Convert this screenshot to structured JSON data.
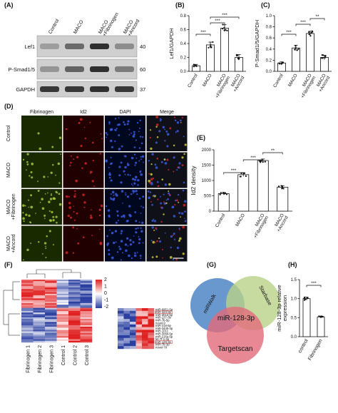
{
  "panels": {
    "A": {
      "label": "(A)",
      "lanes": [
        "Control",
        "MACO",
        "MACO\n+Fibrinogen",
        "MACO\n+Ancord"
      ],
      "bands": [
        {
          "name": "Lef1",
          "kda": "40"
        },
        {
          "name": "P-Smad1/5",
          "kda": "60"
        },
        {
          "name": "GAPDH",
          "kda": "37"
        }
      ]
    },
    "B": {
      "label": "(B)"
    },
    "C": {
      "label": "(C)"
    },
    "D": {
      "label": "(D)",
      "columns": [
        "Fibrinogen",
        "Id2",
        "DAPI",
        "Merge"
      ],
      "rows": [
        "Control",
        "MACO",
        "MACO\n+Fibrinogen",
        "MACO\n+Ancord"
      ]
    },
    "E": {
      "label": "(E)"
    },
    "F": {
      "label": "(F)",
      "colorbar_ticks": [
        "2",
        "1",
        "0",
        "-1",
        "-2"
      ],
      "columns": [
        "Fibrinogen 1",
        "Fibrinogen 2",
        "Fibrinogen 3",
        "Control 1",
        "Control 2",
        "Control 3"
      ],
      "mirnas": [
        "miR-6951-5p",
        "miR-324-3p",
        "miR-3010-5p",
        "miR-137-3b",
        "miR-7b-5p",
        "novel-9",
        "miR-218-5p",
        "miR-344b-3p",
        "miR-101c",
        "miR-3066-5p",
        "miR-216a-5p",
        "let-7f-1-3p",
        "miR-128-3p",
        "miR-7b-3p",
        "novel-78"
      ]
    },
    "G": {
      "label": "(G)",
      "sets": [
        "miRWalk",
        "Starbase",
        "Targetscan"
      ],
      "center": "miR-128-3p"
    },
    "H": {
      "label": "(H)"
    }
  },
  "chart_data": [
    {
      "type": "bar",
      "panel": "B",
      "categories": [
        "Control",
        "MACO",
        "MACO\n+Fibrinogen",
        "MACO\n+Ancord"
      ],
      "values": [
        0.08,
        0.38,
        0.62,
        0.2
      ],
      "errors": [
        0.02,
        0.04,
        0.05,
        0.04
      ],
      "ylabel": "Lef1/GAPDH",
      "ylim": [
        0,
        0.8
      ],
      "yticks": [
        "0.0",
        "0.2",
        "0.4",
        "0.6",
        "0.8"
      ],
      "significance": [
        "***",
        "***",
        "***"
      ]
    },
    {
      "type": "bar",
      "panel": "C",
      "categories": [
        "Control",
        "MACO",
        "MACO\n+Fibrinogen",
        "MACO\n+Ancord"
      ],
      "values": [
        0.15,
        0.42,
        0.68,
        0.25
      ],
      "errors": [
        0.02,
        0.05,
        0.04,
        0.04
      ],
      "ylabel": "P-Smad1/5/GAPDH",
      "ylim": [
        0,
        1.0
      ],
      "yticks": [
        "0.0",
        "0.2",
        "0.4",
        "0.6",
        "0.8",
        "1.0"
      ],
      "significance": [
        "***",
        "***",
        "**"
      ]
    },
    {
      "type": "bar",
      "panel": "E",
      "categories": [
        "Control",
        "MACO",
        "MACO\n+Fibrinogen",
        "MACO\n+Ancord"
      ],
      "values": [
        570,
        1190,
        1650,
        780
      ],
      "errors": [
        40,
        60,
        50,
        50
      ],
      "ylabel": "Id2 density",
      "ylim": [
        0,
        2000
      ],
      "yticks": [
        "0",
        "500",
        "1000",
        "1500",
        "2000"
      ],
      "significance": [
        "***",
        "***",
        "**"
      ]
    },
    {
      "type": "bar",
      "panel": "H",
      "categories": [
        "control",
        "Fibrinogen"
      ],
      "values": [
        1.0,
        0.52
      ],
      "errors": [
        0.04,
        0.02
      ],
      "ylabel": "miR-128-3p relative\nexpression",
      "ylim": [
        0,
        1.5
      ],
      "yticks": [
        "0.0",
        "0.5",
        "1.0",
        "1.5"
      ],
      "significance": [
        "***"
      ]
    }
  ]
}
